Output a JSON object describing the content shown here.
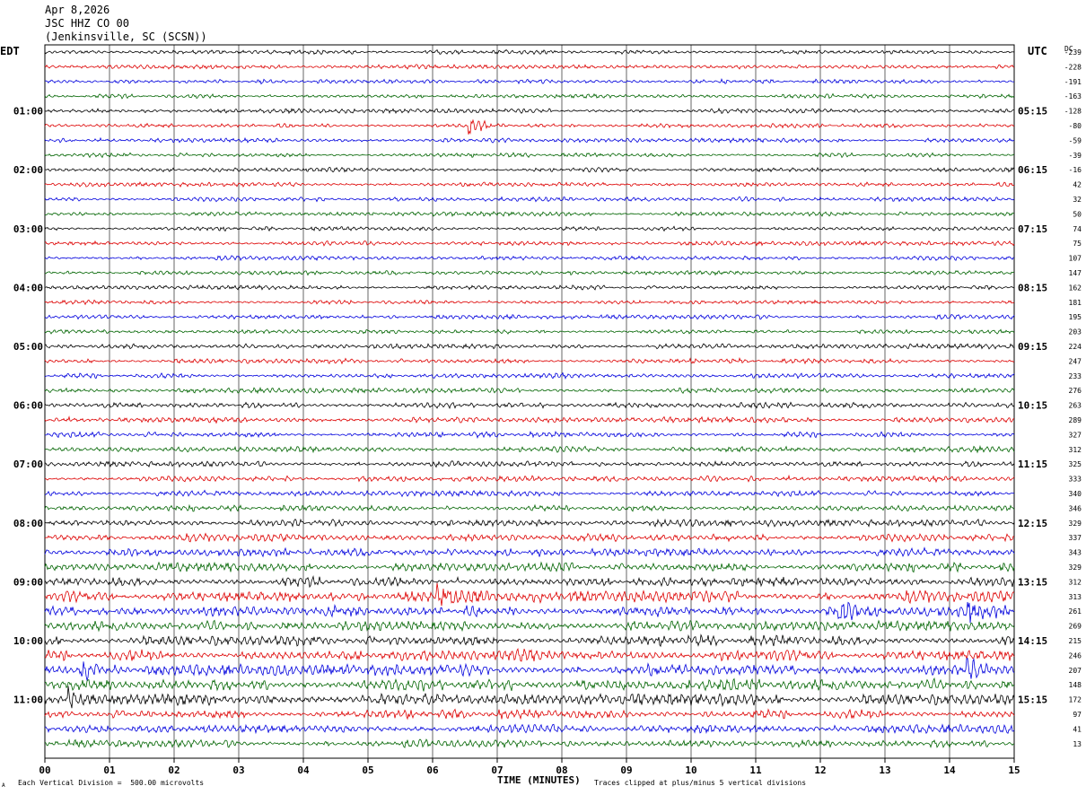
{
  "header": {
    "date": "Apr 8,2026",
    "station": "JSC HHZ CO 00",
    "location": "(Jenkinsville, SC (SCSN))"
  },
  "left_label": "EDT",
  "right_label": "UTC",
  "dc_label": "DC",
  "footer": {
    "scale_note": "Each Vertical Division =  500.00 microvolts",
    "clip_note": "Traces clipped at plus/minus 5 vertical divisions",
    "corner_mark": "A"
  },
  "colors": {
    "cycle": [
      "#000000",
      "#dd0000",
      "#0000dd",
      "#006400"
    ],
    "grid": "#000000"
  },
  "chart_data": {
    "type": "line",
    "xlabel": "TIME (MINUTES)",
    "xlim": [
      0,
      15
    ],
    "x_ticks": [
      "00",
      "01",
      "02",
      "03",
      "04",
      "05",
      "06",
      "07",
      "08",
      "09",
      "10",
      "11",
      "12",
      "13",
      "14",
      "15"
    ],
    "left_time_labels": [
      "01:00",
      "02:00",
      "03:00",
      "04:00",
      "05:00",
      "06:00",
      "07:00",
      "08:00",
      "09:00",
      "10:00",
      "11:00"
    ],
    "right_time_labels": [
      "05:15",
      "06:15",
      "07:15",
      "08:15",
      "09:15",
      "10:15",
      "11:15",
      "12:15",
      "13:15",
      "14:15",
      "15:15"
    ],
    "dc_offsets": [
      "-239",
      "-228",
      "-191",
      "-163",
      "-128",
      "-80",
      "-59",
      "-39",
      "-16",
      "42",
      "32",
      "50",
      "74",
      "75",
      "107",
      "147",
      "162",
      "181",
      "195",
      "203",
      "224",
      "247",
      "233",
      "276",
      "263",
      "289",
      "327",
      "312",
      "325",
      "333",
      "340",
      "346",
      "329",
      "337",
      "343",
      "329",
      "312",
      "313",
      "261",
      "269",
      "215",
      "246",
      "207",
      "148",
      "172",
      "97",
      "41",
      "13"
    ],
    "trace_amplitudes": [
      0.35,
      0.35,
      0.35,
      0.35,
      0.35,
      0.35,
      0.35,
      0.35,
      0.35,
      0.35,
      0.35,
      0.35,
      0.35,
      0.35,
      0.35,
      0.35,
      0.35,
      0.35,
      0.35,
      0.35,
      0.4,
      0.4,
      0.4,
      0.4,
      0.45,
      0.45,
      0.45,
      0.45,
      0.45,
      0.45,
      0.45,
      0.5,
      0.55,
      0.6,
      0.65,
      0.75,
      0.8,
      0.9,
      0.9,
      0.8,
      0.85,
      0.9,
      0.9,
      0.9,
      0.95,
      0.75,
      0.7,
      0.6
    ],
    "events": [
      {
        "trace": 5,
        "minute": 6.6,
        "amplitude": 1.4
      },
      {
        "trace": 37,
        "minute": 6.1,
        "amplitude": 2.2
      },
      {
        "trace": 38,
        "minute": 12.3,
        "amplitude": 1.4
      },
      {
        "trace": 38,
        "minute": 14.3,
        "amplitude": 1.6
      },
      {
        "trace": 42,
        "minute": 0.6,
        "amplitude": 1.5
      },
      {
        "trace": 42,
        "minute": 14.3,
        "amplitude": 1.6
      },
      {
        "trace": 44,
        "minute": 0.4,
        "amplitude": 1.5
      }
    ]
  }
}
